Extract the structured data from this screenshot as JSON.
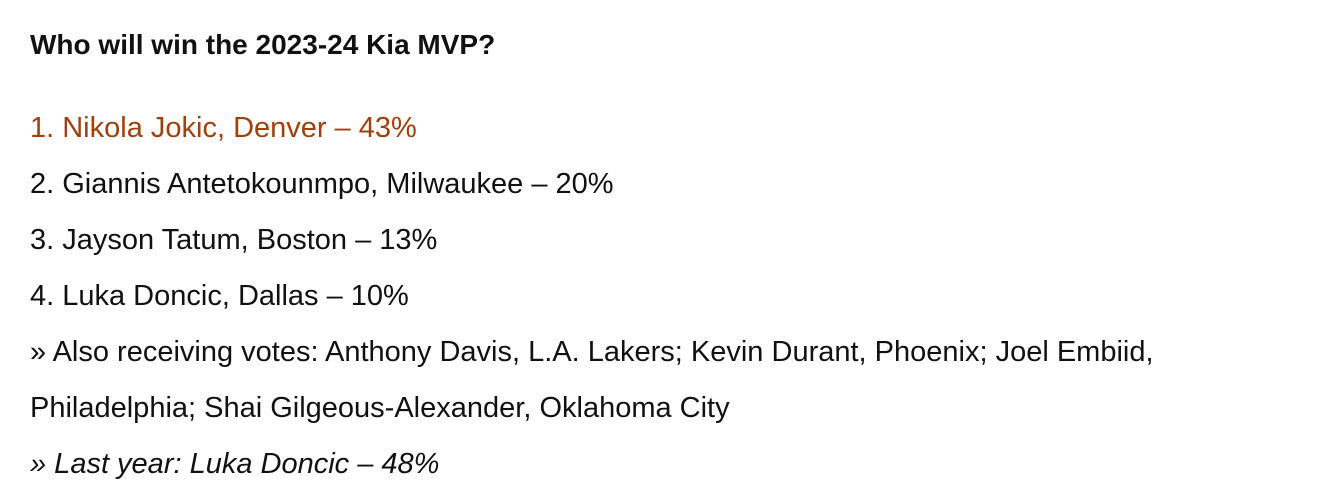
{
  "title": "Who will win the 2023-24 Kia MVP?",
  "rankings": [
    "1. Nikola Jokic, Denver – 43%",
    "2. Giannis Antetokounmpo, Milwaukee – 20%",
    "3. Jayson Tatum, Boston – 13%",
    "4. Luka Doncic, Dallas – 10%"
  ],
  "also_receiving": "» Also receiving votes: Anthony Davis, L.A. Lakers; Kevin Durant, Phoenix; Joel Embiid, Philadelphia; Shai Gilgeous-Alexander, Oklahoma City",
  "last_year": "» Last year: Luka Doncic – 48%"
}
